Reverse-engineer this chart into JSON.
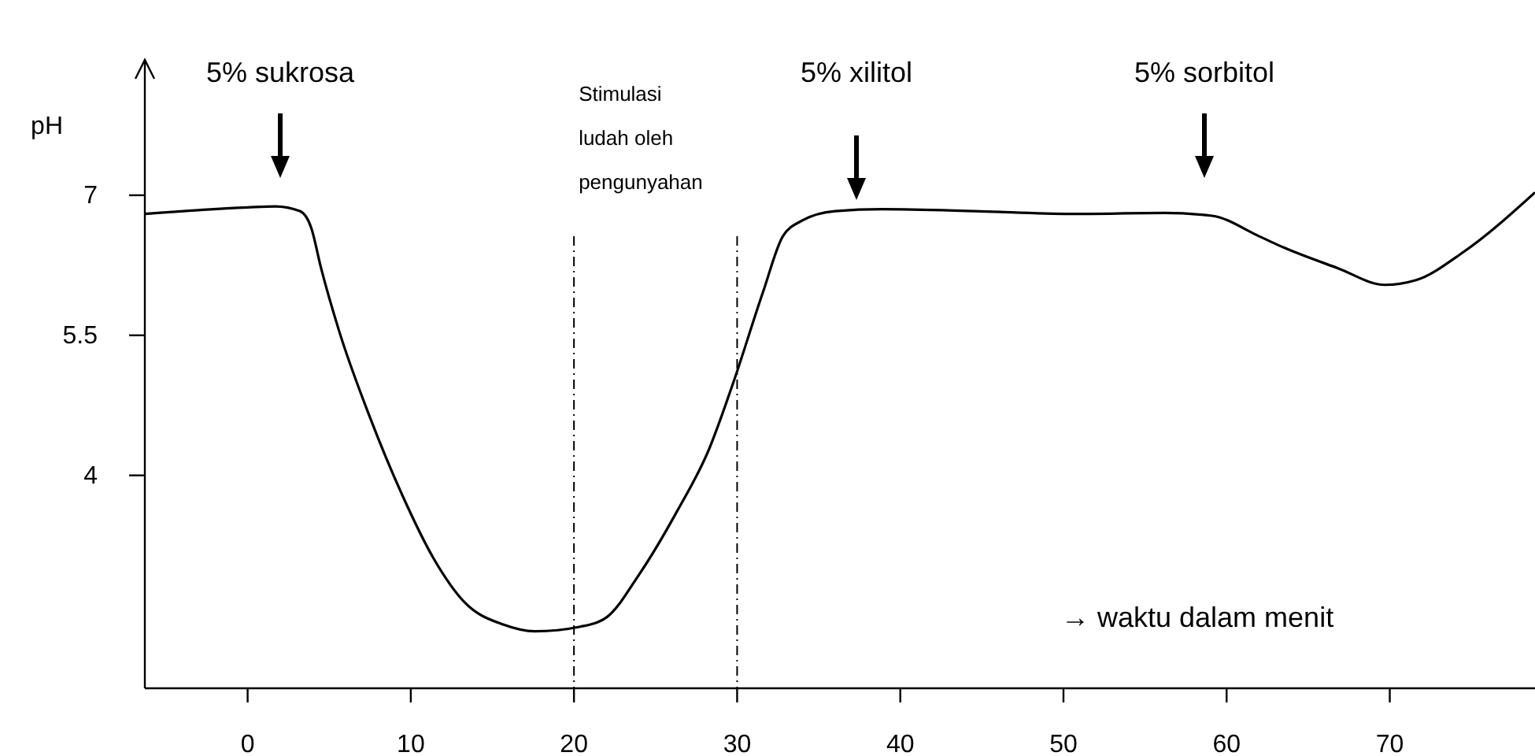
{
  "chart_data": {
    "type": "line",
    "xlabel": "→ waktu dalam menit",
    "ylabel": "pH",
    "xlim": [
      -6.3,
      78.9
    ],
    "ylim": [
      1.72,
      8.45
    ],
    "xticks": [
      0,
      10,
      20,
      30,
      40,
      50,
      60,
      70
    ],
    "yticks": [
      4,
      5.5,
      7
    ],
    "grid": false,
    "marker": "none",
    "line_style": "solid",
    "series": [
      {
        "color": "#000000",
        "x": [
          -6.3,
          0,
          1.7,
          3.2,
          3.9,
          4.5,
          5.6,
          7.5,
          9.5,
          11.4,
          13.3,
          15.7,
          17.6,
          20.4,
          22,
          24,
          26.3,
          28.3,
          29.7,
          31.6,
          32.8,
          34,
          36,
          38.9,
          44.6,
          50.4,
          56.2,
          59.1,
          62,
          63.5,
          66.8,
          69.7,
          71.6,
          74.5,
          78.9
        ],
        "values": [
          6.8,
          6.87,
          6.88,
          6.83,
          6.65,
          6.22,
          5.55,
          4.62,
          3.78,
          3.11,
          2.64,
          2.4,
          2.33,
          2.38,
          2.48,
          2.94,
          3.61,
          4.29,
          4.96,
          5.97,
          6.56,
          6.73,
          6.83,
          6.85,
          6.83,
          6.8,
          6.81,
          6.78,
          6.56,
          6.44,
          6.22,
          6.04,
          6.09,
          6.39,
          7.03
        ]
      }
    ],
    "ref_lines": [
      {
        "axis": "x",
        "value": 20,
        "color": "#000000",
        "line_style": "dashed"
      },
      {
        "axis": "x",
        "value": 30,
        "color": "#000000",
        "line_style": "dashed"
      }
    ],
    "annotations": [
      "5% sukrosa",
      "5% xilitol",
      "5% sorbitol",
      "Stimulasi ludah oleh pengunyahan"
    ]
  }
}
